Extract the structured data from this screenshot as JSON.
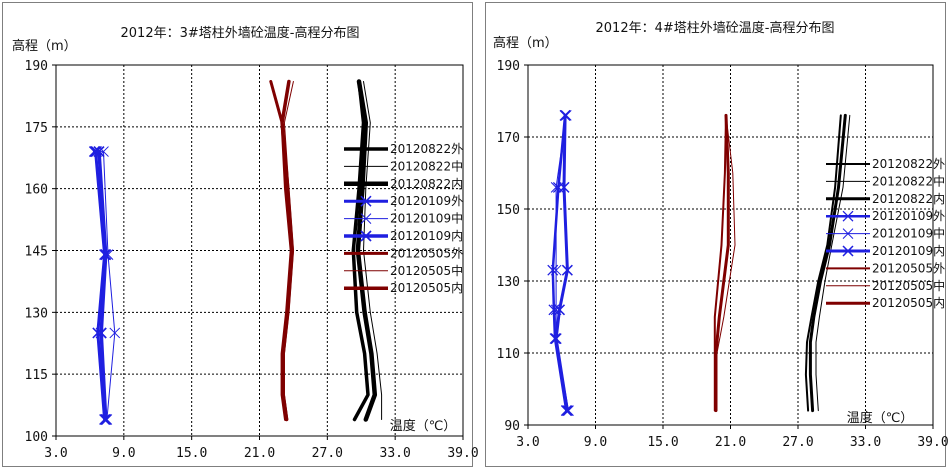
{
  "chart_data": [
    {
      "type": "line",
      "title": "2012年：3#塔柱外墙砼温度-高程分布图",
      "ylabel": "高程（m）",
      "xlabel": "温度（℃）",
      "xlim": [
        3.0,
        39.0
      ],
      "ylim": [
        100,
        190
      ],
      "xticks": [
        "3.0",
        "9.0",
        "15.0",
        "21.0",
        "27.0",
        "33.0",
        "39.0"
      ],
      "yticks": [
        "100",
        "115",
        "130",
        "145",
        "160",
        "175",
        "190"
      ],
      "xtick_values": [
        3,
        9,
        15,
        21,
        27,
        33,
        39
      ],
      "ytick_values": [
        100,
        115,
        130,
        145,
        160,
        175,
        190
      ],
      "grid": true,
      "legend_position": "right",
      "series": [
        {
          "name": "20120822外",
          "color": "#000000",
          "width": 3.5,
          "marker": "none",
          "x": [
            29.8,
            30.2,
            29.8,
            29.3,
            29.6,
            30.3,
            30.6,
            29.4
          ],
          "y": [
            186,
            176,
            160,
            145,
            130,
            120,
            110,
            104
          ]
        },
        {
          "name": "20120822中",
          "color": "#000000",
          "width": 1,
          "marker": "none",
          "x": [
            30.2,
            30.8,
            30.4,
            30.2,
            30.8,
            31.4,
            31.8,
            31.8
          ],
          "y": [
            186,
            176,
            160,
            145,
            130,
            120,
            110,
            104
          ]
        },
        {
          "name": "20120822内",
          "color": "#000000",
          "width": 4.5,
          "marker": "none",
          "x": [
            29.8,
            30.4,
            30.1,
            29.7,
            30.3,
            30.9,
            31.2,
            30.4
          ],
          "y": [
            186,
            176,
            160,
            145,
            130,
            120,
            110,
            104
          ]
        },
        {
          "name": "20120109外",
          "color": "#1f1fe0",
          "width": 3,
          "marker": "x",
          "x": [
            6.4,
            6.5,
            7.3,
            6.7,
            7.3
          ],
          "y": [
            169,
            169,
            144,
            125,
            104
          ]
        },
        {
          "name": "20120109中",
          "color": "#1f1fe0",
          "width": 1,
          "marker": "x",
          "x": [
            6.6,
            7.2,
            7.6,
            8.2,
            7.5
          ],
          "y": [
            169,
            169,
            144,
            125,
            104
          ]
        },
        {
          "name": "20120109内",
          "color": "#1f1fe0",
          "width": 3.5,
          "marker": "x",
          "x": [
            6.5,
            6.8,
            7.4,
            7.0,
            7.4
          ],
          "y": [
            169,
            169,
            144,
            125,
            104
          ]
        },
        {
          "name": "20120505外",
          "color": "#7f0000",
          "width": 3,
          "marker": "none",
          "x": [
            22.0,
            23.0,
            23.3,
            23.8,
            23.4,
            23.0,
            23.0,
            23.3
          ],
          "y": [
            186,
            176,
            160,
            145,
            130,
            120,
            110,
            104
          ]
        },
        {
          "name": "20120505中",
          "color": "#7f0000",
          "width": 1,
          "marker": "none",
          "x": [
            24.0,
            23.2,
            23.6,
            24.0,
            23.6,
            23.2,
            23.2,
            23.5
          ],
          "y": [
            186,
            176,
            160,
            145,
            130,
            120,
            110,
            104
          ]
        },
        {
          "name": "20120505内",
          "color": "#7f0000",
          "width": 3.5,
          "marker": "none",
          "x": [
            23.6,
            23.0,
            23.5,
            23.9,
            23.5,
            23.1,
            23.1,
            23.4
          ],
          "y": [
            186,
            176,
            160,
            145,
            130,
            120,
            110,
            104
          ]
        }
      ]
    },
    {
      "type": "line",
      "title": "2012年：4#塔柱外墙砼温度-高程分布图",
      "ylabel": "高程（m）",
      "xlabel": "温度（℃）",
      "xlim": [
        3.0,
        39.0
      ],
      "ylim": [
        90,
        190
      ],
      "xticks": [
        "3.0",
        "9.0",
        "15.0",
        "21.0",
        "27.0",
        "33.0",
        "39.0"
      ],
      "yticks": [
        "90",
        "110",
        "130",
        "150",
        "170",
        "190"
      ],
      "xtick_values": [
        3,
        9,
        15,
        21,
        27,
        33,
        39
      ],
      "ytick_values": [
        90,
        110,
        130,
        150,
        170,
        190
      ],
      "grid": true,
      "legend_position": "right",
      "series": [
        {
          "name": "20120822外",
          "color": "#000000",
          "width": 2,
          "marker": "none",
          "x": [
            30.8,
            30.3,
            29.6,
            28.8,
            28.2,
            27.8,
            27.7,
            27.9
          ],
          "y": [
            176,
            156,
            140,
            130,
            120,
            113,
            104,
            94
          ]
        },
        {
          "name": "20120822中",
          "color": "#000000",
          "width": 1,
          "marker": "none",
          "x": [
            31.6,
            31.0,
            30.0,
            29.4,
            28.9,
            28.6,
            28.6,
            28.8
          ],
          "y": [
            176,
            156,
            140,
            130,
            120,
            113,
            104,
            94
          ]
        },
        {
          "name": "20120822内",
          "color": "#000000",
          "width": 3,
          "marker": "none",
          "x": [
            31.2,
            30.6,
            29.8,
            29.0,
            28.4,
            28.1,
            28.1,
            28.3
          ],
          "y": [
            176,
            156,
            140,
            130,
            120,
            113,
            104,
            94
          ]
        },
        {
          "name": "20120109外",
          "color": "#1f1fe0",
          "width": 2.5,
          "marker": "x",
          "x": [
            6.3,
            5.7,
            5.2,
            5.3,
            5.4,
            6.4
          ],
          "y": [
            176,
            156,
            133,
            122,
            114,
            94
          ]
        },
        {
          "name": "20120109中",
          "color": "#1f1fe0",
          "width": 1,
          "marker": "x",
          "x": [
            6.4,
            5.5,
            5.5,
            5.5,
            5.5,
            6.6
          ],
          "y": [
            176,
            156,
            133,
            122,
            114,
            94
          ]
        },
        {
          "name": "20120109内",
          "color": "#1f1fe0",
          "width": 3,
          "marker": "x",
          "x": [
            6.3,
            6.2,
            6.5,
            5.8,
            5.5,
            6.5
          ],
          "y": [
            176,
            156,
            133,
            122,
            114,
            94
          ]
        },
        {
          "name": "20120505外",
          "color": "#7f0000",
          "width": 2,
          "marker": "none",
          "x": [
            20.6,
            20.5,
            20.2,
            19.6,
            19.6,
            19.6
          ],
          "y": [
            176,
            160,
            140,
            120,
            110,
            94
          ]
        },
        {
          "name": "20120505中",
          "color": "#7f0000",
          "width": 1,
          "marker": "none",
          "x": [
            20.6,
            21.2,
            21.4,
            20.4,
            19.8,
            19.8
          ],
          "y": [
            176,
            160,
            140,
            120,
            110,
            94
          ]
        },
        {
          "name": "20120505内",
          "color": "#7f0000",
          "width": 3,
          "marker": "none",
          "x": [
            20.6,
            20.8,
            20.8,
            20.0,
            19.7,
            19.7
          ],
          "y": [
            176,
            160,
            140,
            120,
            110,
            94
          ]
        }
      ]
    }
  ]
}
